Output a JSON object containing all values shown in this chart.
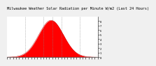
{
  "title": "Milwaukee Weather Solar Radiation per Minute W/m2 (Last 24 Hours)",
  "background_color": "#f0f0f0",
  "plot_bg_color": "#ffffff",
  "fill_color": "#ff0000",
  "line_color": "#bb0000",
  "grid_color": "#888888",
  "ylim": [
    0,
    900
  ],
  "xlim": [
    0,
    1440
  ],
  "peak_x": 700,
  "peak_y": 820,
  "bell_sigma": 195,
  "num_points": 1440,
  "vgrid_positions": [
    288,
    576,
    720,
    864,
    1152
  ],
  "title_fontsize": 3.8,
  "tick_fontsize": 2.8,
  "ytick_vals": [
    0,
    100,
    200,
    300,
    400,
    500,
    600,
    700,
    800
  ],
  "ytick_labels": [
    "0",
    "1",
    "2",
    "3",
    "4",
    "5",
    "6",
    "7",
    "8"
  ]
}
